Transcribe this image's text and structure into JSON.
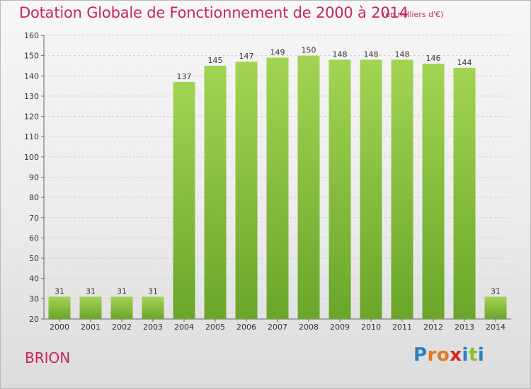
{
  "header": {
    "title": "Dotation Globale de Fonctionnement de 2000 à 2014",
    "unit": "(en milliers d'€)"
  },
  "footer": {
    "commune": "BRION",
    "logo_letters": [
      {
        "ch": "P",
        "color": "#2a7fc0"
      },
      {
        "ch": "r",
        "color": "#e07a1f"
      },
      {
        "ch": "o",
        "color": "#e07a1f"
      },
      {
        "ch": "x",
        "color": "#d6281c"
      },
      {
        "ch": "i",
        "color": "#2a7fc0"
      },
      {
        "ch": "t",
        "color": "#8bbf2a"
      },
      {
        "ch": "i",
        "color": "#2a7fc0"
      }
    ]
  },
  "colors": {
    "accent": "#c8245e",
    "bar_light": "#a3d453",
    "bar_dark": "#6aa62a"
  },
  "chart_data": {
    "type": "bar",
    "title": "Dotation Globale de Fonctionnement de 2000 à 2014",
    "subtitle": "(en milliers d'€)",
    "xlabel": "",
    "ylabel": "",
    "categories": [
      "2000",
      "2001",
      "2002",
      "2003",
      "2004",
      "2005",
      "2006",
      "2007",
      "2008",
      "2009",
      "2010",
      "2011",
      "2012",
      "2013",
      "2014"
    ],
    "values": [
      31,
      31,
      31,
      31,
      137,
      145,
      147,
      149,
      150,
      148,
      148,
      148,
      146,
      144,
      31
    ],
    "ylim": [
      20,
      160
    ],
    "yticks": [
      20,
      30,
      40,
      50,
      60,
      70,
      80,
      90,
      100,
      110,
      120,
      130,
      140,
      150,
      160
    ],
    "grid": true,
    "show_value_labels": true
  }
}
